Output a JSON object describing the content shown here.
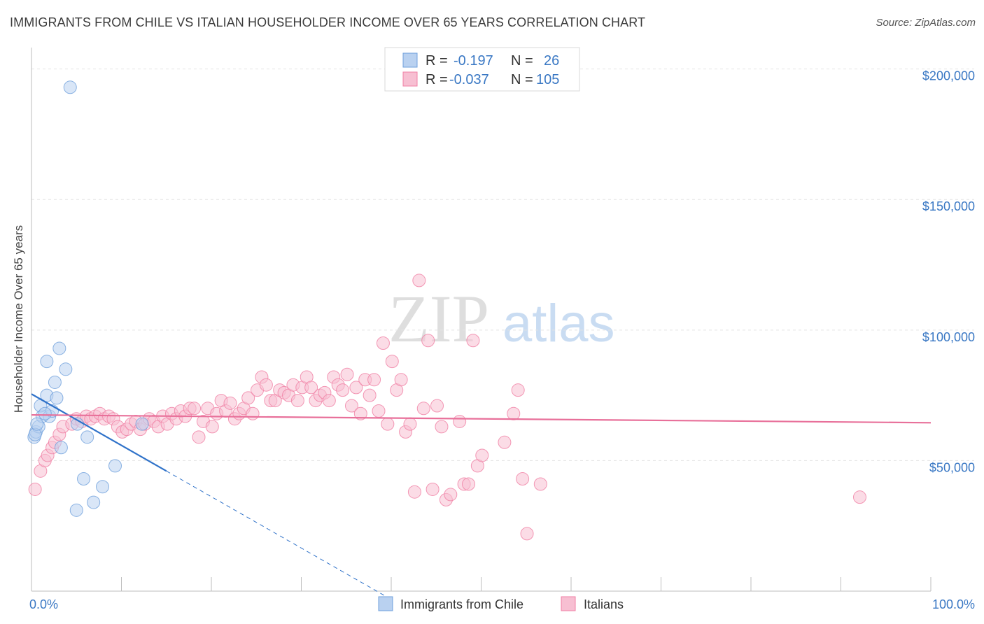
{
  "header": {
    "title": "IMMIGRANTS FROM CHILE VS ITALIAN HOUSEHOLDER INCOME OVER 65 YEARS CORRELATION CHART",
    "source": "Source: ZipAtlas.com"
  },
  "watermark": {
    "zip": "ZIP",
    "atlas": "atlas"
  },
  "legend": {
    "r_label": "R =",
    "n_label": "N =",
    "rows": [
      {
        "r": "-0.197",
        "n": "26",
        "color": "#6fa0dc"
      },
      {
        "r": "-0.037",
        "n": "105",
        "color": "#f07fa4"
      }
    ]
  },
  "chart_data": {
    "type": "scatter",
    "title": "IMMIGRANTS FROM CHILE VS ITALIAN HOUSEHOLDER INCOME OVER 65 YEARS CORRELATION CHART",
    "xlabel": "",
    "ylabel": "Householder Income Over 65 years",
    "xlim": [
      0,
      100
    ],
    "ylim": [
      0,
      205000
    ],
    "x_tick_labels": {
      "left": "0.0%",
      "right": "100.0%"
    },
    "y_ticks": [
      {
        "value": 50000,
        "label": "$50,000"
      },
      {
        "value": 100000,
        "label": "$100,000"
      },
      {
        "value": 150000,
        "label": "$150,000"
      },
      {
        "value": 200000,
        "label": "$200,000"
      }
    ],
    "series": [
      {
        "name": "Immigrants from Chile",
        "color": "#6fa0dc",
        "fill": "#b9d1f0",
        "trend": {
          "x0": 0,
          "y0": 75500,
          "x1": 15,
          "y1": 46000,
          "dash_to_x": 40
        },
        "points": [
          [
            4.3,
            193000
          ],
          [
            0.3,
            59000
          ],
          [
            0.5,
            61000
          ],
          [
            0.8,
            63000
          ],
          [
            1.2,
            67000
          ],
          [
            1.0,
            71000
          ],
          [
            1.7,
            75000
          ],
          [
            2.0,
            67000
          ],
          [
            2.3,
            69000
          ],
          [
            2.6,
            80000
          ],
          [
            2.8,
            74000
          ],
          [
            1.7,
            88000
          ],
          [
            3.1,
            93000
          ],
          [
            3.8,
            85000
          ],
          [
            3.3,
            55000
          ],
          [
            5.1,
            64000
          ],
          [
            6.2,
            59000
          ],
          [
            12.3,
            64000
          ],
          [
            5.8,
            43000
          ],
          [
            7.9,
            40000
          ],
          [
            5.0,
            31000
          ],
          [
            6.9,
            34000
          ],
          [
            9.3,
            48000
          ],
          [
            0.4,
            60000
          ],
          [
            0.6,
            64000
          ],
          [
            1.5,
            68000
          ]
        ]
      },
      {
        "name": "Italians",
        "color": "#f07fa4",
        "fill": "#f7bfd2",
        "trend": {
          "x0": 0,
          "y0": 67500,
          "x1": 100,
          "y1": 64500
        },
        "points": [
          [
            0.4,
            39000
          ],
          [
            1.0,
            46000
          ],
          [
            1.5,
            50000
          ],
          [
            1.8,
            52000
          ],
          [
            2.3,
            55000
          ],
          [
            2.6,
            57000
          ],
          [
            3.1,
            60000
          ],
          [
            3.5,
            63000
          ],
          [
            4.5,
            64000
          ],
          [
            5.0,
            66000
          ],
          [
            5.6,
            65000
          ],
          [
            6.1,
            67000
          ],
          [
            6.6,
            66000
          ],
          [
            7.1,
            67000
          ],
          [
            7.6,
            68000
          ],
          [
            8.1,
            66000
          ],
          [
            8.6,
            67000
          ],
          [
            9.1,
            66000
          ],
          [
            9.6,
            63000
          ],
          [
            10.1,
            61000
          ],
          [
            10.6,
            62000
          ],
          [
            11.1,
            64000
          ],
          [
            11.6,
            65000
          ],
          [
            12.1,
            62000
          ],
          [
            12.6,
            64000
          ],
          [
            13.1,
            66000
          ],
          [
            13.6,
            65000
          ],
          [
            14.1,
            63000
          ],
          [
            14.6,
            67000
          ],
          [
            15.1,
            64000
          ],
          [
            15.6,
            68000
          ],
          [
            16.1,
            66000
          ],
          [
            16.6,
            69000
          ],
          [
            17.1,
            67000
          ],
          [
            17.6,
            70000
          ],
          [
            18.1,
            70000
          ],
          [
            18.6,
            59000
          ],
          [
            19.1,
            65000
          ],
          [
            19.6,
            70000
          ],
          [
            20.1,
            63000
          ],
          [
            20.6,
            68000
          ],
          [
            21.1,
            73000
          ],
          [
            21.6,
            69000
          ],
          [
            22.1,
            72000
          ],
          [
            22.6,
            66000
          ],
          [
            23.1,
            68000
          ],
          [
            23.6,
            70000
          ],
          [
            24.1,
            74000
          ],
          [
            24.6,
            68000
          ],
          [
            25.1,
            77000
          ],
          [
            25.6,
            82000
          ],
          [
            26.1,
            79000
          ],
          [
            26.6,
            73000
          ],
          [
            27.1,
            73000
          ],
          [
            27.6,
            77000
          ],
          [
            28.1,
            76000
          ],
          [
            28.6,
            75000
          ],
          [
            29.1,
            79000
          ],
          [
            29.6,
            73000
          ],
          [
            30.1,
            78000
          ],
          [
            30.6,
            82000
          ],
          [
            31.1,
            78000
          ],
          [
            31.6,
            73000
          ],
          [
            32.1,
            75000
          ],
          [
            32.6,
            76000
          ],
          [
            33.1,
            73000
          ],
          [
            33.6,
            82000
          ],
          [
            34.1,
            79000
          ],
          [
            34.6,
            77000
          ],
          [
            35.1,
            83000
          ],
          [
            35.6,
            71000
          ],
          [
            36.1,
            78000
          ],
          [
            36.6,
            68000
          ],
          [
            37.1,
            81000
          ],
          [
            37.6,
            75000
          ],
          [
            38.1,
            81000
          ],
          [
            38.6,
            69000
          ],
          [
            39.1,
            95000
          ],
          [
            39.6,
            64000
          ],
          [
            40.1,
            88000
          ],
          [
            40.6,
            77000
          ],
          [
            41.1,
            81000
          ],
          [
            41.6,
            61000
          ],
          [
            42.1,
            64000
          ],
          [
            42.6,
            38000
          ],
          [
            43.1,
            119000
          ],
          [
            43.6,
            70000
          ],
          [
            44.1,
            96000
          ],
          [
            44.6,
            39000
          ],
          [
            45.1,
            71000
          ],
          [
            45.6,
            63000
          ],
          [
            46.1,
            35000
          ],
          [
            46.6,
            37000
          ],
          [
            47.6,
            65000
          ],
          [
            48.1,
            41000
          ],
          [
            48.6,
            41000
          ],
          [
            49.1,
            96000
          ],
          [
            49.6,
            48000
          ],
          [
            50.1,
            52000
          ],
          [
            52.6,
            57000
          ],
          [
            53.6,
            68000
          ],
          [
            54.1,
            77000
          ],
          [
            54.6,
            43000
          ],
          [
            55.1,
            22000
          ],
          [
            56.6,
            41000
          ],
          [
            92.1,
            36000
          ]
        ]
      }
    ],
    "bottom_legend": [
      "Immigrants from Chile",
      "Italians"
    ]
  }
}
